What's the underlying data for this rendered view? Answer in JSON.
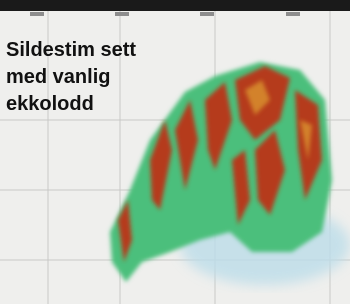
{
  "caption": {
    "lines": [
      "Sildestim sett",
      "med vanlig",
      "ekkolodd"
    ]
  }
}
